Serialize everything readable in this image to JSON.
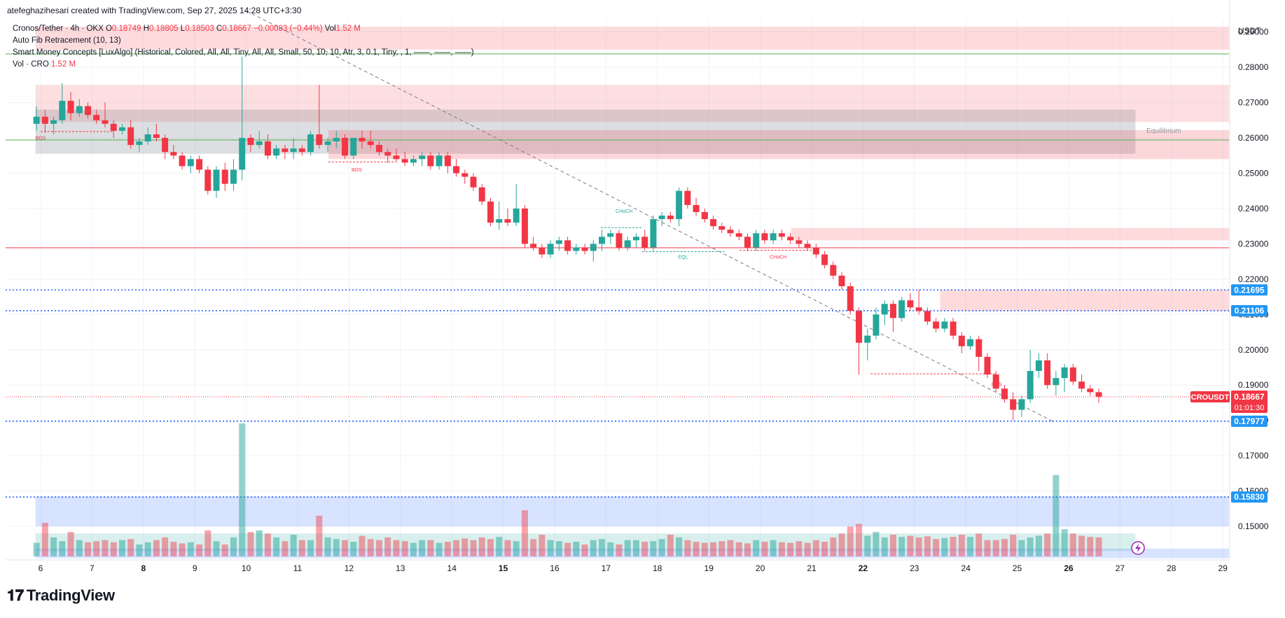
{
  "header": {
    "credit": "atefeghazihesari created with TradingView.com, Sep 27, 2025 14:28 UTC+3:30"
  },
  "legend": {
    "symbol": "Cronos/Tether · 4h · OKX",
    "o_label": "O",
    "o": "0.18749",
    "h_label": "H",
    "h": "0.18805",
    "l_label": "L",
    "l": "0.18503",
    "c_label": "C",
    "c": "0.18667",
    "change": "−0.00083 (−0.44%)",
    "vol_label": "Vol",
    "vol": "1.52 M",
    "indicator1": "Auto Fib Retracement (10, 13)",
    "indicator2": "Smart Money Concepts [LuxAlgo] (Historical, Colored, All, All, Tiny, All, All, Small, 50, 10, 10, Atr, 3, 0.1, Tiny, , 1, ——, ——, ——)",
    "indicator3": "Vol · CRO",
    "indicator3_value": "1.52 M"
  },
  "logo": {
    "text": "TradingView"
  },
  "colors": {
    "up": "#26a69a",
    "down": "#f23645",
    "blue": "#2962ff",
    "label_blue": "#2196f3"
  },
  "chart_data": {
    "type": "candlestick",
    "currency": "USDT",
    "yrange": [
      0.1405,
      0.2935
    ],
    "y_ticks": [
      "0.15000",
      "0.16000",
      "0.17000",
      "0.18000",
      "0.19000",
      "0.20000",
      "0.21000",
      "0.22000",
      "0.23000",
      "0.24000",
      "0.25000",
      "0.26000",
      "0.27000",
      "0.28000",
      "0.29000"
    ],
    "x_ticks": [
      {
        "label": "6",
        "day": 6
      },
      {
        "label": "7",
        "day": 7
      },
      {
        "label": "8",
        "day": 8
      },
      {
        "label": "9",
        "day": 9
      },
      {
        "label": "10",
        "day": 10
      },
      {
        "label": "11",
        "day": 11
      },
      {
        "label": "12",
        "day": 12
      },
      {
        "label": "13",
        "day": 13
      },
      {
        "label": "14",
        "day": 14
      },
      {
        "label": "15",
        "day": 15
      },
      {
        "label": "16",
        "day": 16
      },
      {
        "label": "17",
        "day": 17
      },
      {
        "label": "18",
        "day": 18
      },
      {
        "label": "19",
        "day": 19
      },
      {
        "label": "20",
        "day": 20
      },
      {
        "label": "21",
        "day": 21
      },
      {
        "label": "22",
        "day": 22
      },
      {
        "label": "23",
        "day": 23
      },
      {
        "label": "24",
        "day": 24
      },
      {
        "label": "25",
        "day": 25
      },
      {
        "label": "26",
        "day": 26
      },
      {
        "label": "27",
        "day": 27
      },
      {
        "label": "28",
        "day": 28
      },
      {
        "label": "29",
        "day": 29
      }
    ],
    "bold_x_ticks": [
      "8",
      "15",
      "22",
      "26"
    ],
    "current_price": {
      "label": "CROUSDT",
      "value": "0.18667",
      "countdown": "01:01:30",
      "price": 0.18667
    },
    "price_labels": [
      {
        "text": "0.21695",
        "price": 0.21695
      },
      {
        "text": "0.21106",
        "price": 0.21106
      },
      {
        "text": "0.17977",
        "price": 0.17977
      },
      {
        "text": "0.15830",
        "price": 0.1583
      }
    ],
    "horizontal_lines": [
      {
        "price": 0.2838,
        "color": "#4caf50",
        "style": "solid"
      },
      {
        "price": 0.2594,
        "color": "#4caf50",
        "style": "solid"
      },
      {
        "price": 0.2289,
        "color": "#f23645",
        "style": "solid"
      },
      {
        "price": 0.21695,
        "color": "#2962ff",
        "style": "dotted"
      },
      {
        "price": 0.21106,
        "color": "#2962ff",
        "style": "dotted"
      },
      {
        "price": 0.17977,
        "color": "#2962ff",
        "style": "dotted"
      },
      {
        "price": 0.1583,
        "color": "#2962ff",
        "style": "dotted"
      }
    ],
    "zones": [
      {
        "x0": 5.9,
        "x1": 29.2,
        "p0": 0.2915,
        "p1": 0.285,
        "color": "rgba(242,54,69,0.18)"
      },
      {
        "x0": 5.9,
        "x1": 29.2,
        "p0": 0.275,
        "p1": 0.2645,
        "color": "rgba(242,54,69,0.16)"
      },
      {
        "x0": 5.9,
        "x1": 27.3,
        "p0": 0.268,
        "p1": 0.2555,
        "color": "rgba(120,123,134,0.25)"
      },
      {
        "x0": 11.6,
        "x1": 29.2,
        "p0": 0.2622,
        "p1": 0.254,
        "color": "rgba(242,54,69,0.20)"
      },
      {
        "x0": 20.6,
        "x1": 29.2,
        "p0": 0.2345,
        "p1": 0.231,
        "color": "rgba(242,54,69,0.18)"
      },
      {
        "x0": 23.5,
        "x1": 29.2,
        "p0": 0.217,
        "p1": 0.211,
        "color": "rgba(242,54,69,0.18)"
      },
      {
        "x0": 5.9,
        "x1": 29.2,
        "p0": 0.1585,
        "p1": 0.15,
        "color": "rgba(41,98,255,0.18)"
      },
      {
        "x0": 5.9,
        "x1": 27.3,
        "p0": 0.148,
        "p1": 0.143,
        "color": "rgba(38,166,154,0.18)"
      },
      {
        "x0": 5.9,
        "x1": 29.2,
        "p0": 0.1437,
        "p1": 0.141,
        "color": "rgba(41,98,255,0.18)"
      }
    ],
    "smc_labels": [
      {
        "text": "BOS",
        "day": 6.0,
        "price": 0.2595,
        "color": "#f23645"
      },
      {
        "text": "BOS",
        "day": 12.15,
        "price": 0.2505,
        "color": "#f23645"
      },
      {
        "text": "CHoCH",
        "day": 17.35,
        "price": 0.2388,
        "color": "#26a69a"
      },
      {
        "text": "EQL",
        "day": 18.5,
        "price": 0.2258,
        "color": "#26a69a"
      },
      {
        "text": "CHoCH",
        "day": 20.35,
        "price": 0.2258,
        "color": "#f23645"
      },
      {
        "text": "BOS",
        "day": 24.6,
        "price": 0.1897,
        "color": "#f23645"
      },
      {
        "text": "Equilibrium",
        "day": 27.85,
        "price": 0.2614,
        "color": "#9598a1"
      }
    ],
    "smc_lines": [
      {
        "d0": 6.0,
        "d1": 7.4,
        "p": 0.2618,
        "color": "#f23645"
      },
      {
        "d0": 11.6,
        "d1": 12.9,
        "p": 0.2532,
        "color": "#f23645"
      },
      {
        "d0": 16.9,
        "d1": 17.7,
        "p": 0.2346,
        "color": "#26a69a"
      },
      {
        "d0": 17.7,
        "d1": 19.3,
        "p": 0.2278,
        "color": "#26a69a"
      },
      {
        "d0": 19.6,
        "d1": 21.1,
        "p": 0.2282,
        "color": "#f23645"
      },
      {
        "d0": 22.15,
        "d1": 24.6,
        "p": 0.1932,
        "color": "#f23645"
      }
    ],
    "trendline": {
      "d0": 10.0,
      "p0": 0.296,
      "d1": 25.7,
      "p1": 0.1797,
      "color": "#787b86"
    },
    "candles": [
      [
        0.264,
        0.269,
        0.262,
        0.266
      ],
      [
        0.266,
        0.268,
        0.2615,
        0.264
      ],
      [
        0.264,
        0.266,
        0.261,
        0.265
      ],
      [
        0.265,
        0.2755,
        0.264,
        0.2705
      ],
      [
        0.2705,
        0.273,
        0.265,
        0.267
      ],
      [
        0.267,
        0.271,
        0.266,
        0.269
      ],
      [
        0.269,
        0.27,
        0.2655,
        0.2665
      ],
      [
        0.2665,
        0.268,
        0.264,
        0.265
      ],
      [
        0.265,
        0.27,
        0.263,
        0.264
      ],
      [
        0.264,
        0.265,
        0.26,
        0.262
      ],
      [
        0.262,
        0.264,
        0.261,
        0.263
      ],
      [
        0.263,
        0.265,
        0.257,
        0.258
      ],
      [
        0.258,
        0.26,
        0.256,
        0.259
      ],
      [
        0.259,
        0.263,
        0.258,
        0.261
      ],
      [
        0.261,
        0.264,
        0.259,
        0.26
      ],
      [
        0.26,
        0.261,
        0.254,
        0.256
      ],
      [
        0.256,
        0.258,
        0.254,
        0.255
      ],
      [
        0.255,
        0.256,
        0.251,
        0.252
      ],
      [
        0.252,
        0.255,
        0.25,
        0.254
      ],
      [
        0.254,
        0.255,
        0.25,
        0.251
      ],
      [
        0.251,
        0.252,
        0.244,
        0.245
      ],
      [
        0.245,
        0.252,
        0.243,
        0.251
      ],
      [
        0.251,
        0.253,
        0.245,
        0.247
      ],
      [
        0.247,
        0.254,
        0.245,
        0.251
      ],
      [
        0.251,
        0.283,
        0.248,
        0.26
      ],
      [
        0.26,
        0.261,
        0.256,
        0.258
      ],
      [
        0.258,
        0.262,
        0.257,
        0.259
      ],
      [
        0.259,
        0.261,
        0.254,
        0.255
      ],
      [
        0.255,
        0.258,
        0.254,
        0.257
      ],
      [
        0.257,
        0.258,
        0.254,
        0.256
      ],
      [
        0.256,
        0.26,
        0.254,
        0.257
      ],
      [
        0.257,
        0.258,
        0.255,
        0.256
      ],
      [
        0.256,
        0.262,
        0.255,
        0.261
      ],
      [
        0.261,
        0.275,
        0.257,
        0.258
      ],
      [
        0.258,
        0.26,
        0.256,
        0.259
      ],
      [
        0.259,
        0.262,
        0.257,
        0.26
      ],
      [
        0.26,
        0.261,
        0.254,
        0.255
      ],
      [
        0.255,
        0.26,
        0.254,
        0.26
      ],
      [
        0.26,
        0.262,
        0.257,
        0.259
      ],
      [
        0.259,
        0.262,
        0.257,
        0.258
      ],
      [
        0.258,
        0.259,
        0.255,
        0.256
      ],
      [
        0.256,
        0.257,
        0.253,
        0.255
      ],
      [
        0.255,
        0.257,
        0.253,
        0.254
      ],
      [
        0.254,
        0.256,
        0.252,
        0.253
      ],
      [
        0.253,
        0.255,
        0.252,
        0.254
      ],
      [
        0.254,
        0.256,
        0.252,
        0.255
      ],
      [
        0.255,
        0.256,
        0.251,
        0.252
      ],
      [
        0.252,
        0.256,
        0.251,
        0.255
      ],
      [
        0.255,
        0.256,
        0.25,
        0.252
      ],
      [
        0.252,
        0.254,
        0.249,
        0.25
      ],
      [
        0.25,
        0.251,
        0.247,
        0.249
      ],
      [
        0.249,
        0.25,
        0.245,
        0.246
      ],
      [
        0.246,
        0.247,
        0.241,
        0.242
      ],
      [
        0.242,
        0.243,
        0.235,
        0.236
      ],
      [
        0.236,
        0.242,
        0.234,
        0.237
      ],
      [
        0.237,
        0.24,
        0.235,
        0.236
      ],
      [
        0.236,
        0.247,
        0.235,
        0.24
      ],
      [
        0.24,
        0.241,
        0.229,
        0.23
      ],
      [
        0.23,
        0.232,
        0.228,
        0.229
      ],
      [
        0.229,
        0.23,
        0.226,
        0.227
      ],
      [
        0.227,
        0.231,
        0.226,
        0.23
      ],
      [
        0.23,
        0.232,
        0.228,
        0.231
      ],
      [
        0.231,
        0.232,
        0.227,
        0.228
      ],
      [
        0.228,
        0.23,
        0.227,
        0.229
      ],
      [
        0.229,
        0.23,
        0.227,
        0.228
      ],
      [
        0.228,
        0.231,
        0.225,
        0.23
      ],
      [
        0.23,
        0.234,
        0.228,
        0.232
      ],
      [
        0.232,
        0.234,
        0.23,
        0.233
      ],
      [
        0.233,
        0.234,
        0.228,
        0.229
      ],
      [
        0.229,
        0.232,
        0.228,
        0.231
      ],
      [
        0.231,
        0.233,
        0.229,
        0.232
      ],
      [
        0.232,
        0.234,
        0.228,
        0.229
      ],
      [
        0.229,
        0.238,
        0.228,
        0.237
      ],
      [
        0.237,
        0.239,
        0.235,
        0.238
      ],
      [
        0.238,
        0.239,
        0.236,
        0.237
      ],
      [
        0.237,
        0.246,
        0.235,
        0.245
      ],
      [
        0.245,
        0.246,
        0.24,
        0.241
      ],
      [
        0.241,
        0.243,
        0.238,
        0.239
      ],
      [
        0.239,
        0.24,
        0.236,
        0.237
      ],
      [
        0.237,
        0.238,
        0.234,
        0.235
      ],
      [
        0.235,
        0.236,
        0.233,
        0.234
      ],
      [
        0.234,
        0.235,
        0.232,
        0.233
      ],
      [
        0.233,
        0.234,
        0.231,
        0.232
      ],
      [
        0.232,
        0.233,
        0.228,
        0.229
      ],
      [
        0.229,
        0.234,
        0.228,
        0.233
      ],
      [
        0.233,
        0.234,
        0.23,
        0.231
      ],
      [
        0.231,
        0.234,
        0.23,
        0.233
      ],
      [
        0.233,
        0.234,
        0.231,
        0.232
      ],
      [
        0.232,
        0.233,
        0.23,
        0.231
      ],
      [
        0.231,
        0.232,
        0.229,
        0.23
      ],
      [
        0.23,
        0.231,
        0.228,
        0.229
      ],
      [
        0.229,
        0.23,
        0.226,
        0.227
      ],
      [
        0.227,
        0.228,
        0.223,
        0.224
      ],
      [
        0.224,
        0.225,
        0.22,
        0.221
      ],
      [
        0.221,
        0.222,
        0.217,
        0.218
      ],
      [
        0.218,
        0.219,
        0.21,
        0.211
      ],
      [
        0.211,
        0.212,
        0.193,
        0.202
      ],
      [
        0.202,
        0.206,
        0.197,
        0.204
      ],
      [
        0.204,
        0.212,
        0.203,
        0.21
      ],
      [
        0.21,
        0.214,
        0.207,
        0.213
      ],
      [
        0.213,
        0.214,
        0.205,
        0.209
      ],
      [
        0.209,
        0.215,
        0.208,
        0.214
      ],
      [
        0.214,
        0.216,
        0.211,
        0.212
      ],
      [
        0.212,
        0.217,
        0.21,
        0.211
      ],
      [
        0.211,
        0.212,
        0.207,
        0.208
      ],
      [
        0.208,
        0.209,
        0.205,
        0.206
      ],
      [
        0.206,
        0.209,
        0.205,
        0.208
      ],
      [
        0.208,
        0.209,
        0.203,
        0.204
      ],
      [
        0.204,
        0.205,
        0.199,
        0.201
      ],
      [
        0.201,
        0.204,
        0.2,
        0.203
      ],
      [
        0.203,
        0.204,
        0.194,
        0.198
      ],
      [
        0.198,
        0.199,
        0.192,
        0.193
      ],
      [
        0.193,
        0.194,
        0.188,
        0.189
      ],
      [
        0.189,
        0.19,
        0.185,
        0.186
      ],
      [
        0.186,
        0.188,
        0.18,
        0.183
      ],
      [
        0.183,
        0.187,
        0.181,
        0.186
      ],
      [
        0.186,
        0.2,
        0.185,
        0.194
      ],
      [
        0.194,
        0.199,
        0.192,
        0.197
      ],
      [
        0.197,
        0.199,
        0.189,
        0.19
      ],
      [
        0.19,
        0.194,
        0.187,
        0.192
      ],
      [
        0.192,
        0.196,
        0.188,
        0.195
      ],
      [
        0.195,
        0.196,
        0.19,
        0.191
      ],
      [
        0.191,
        0.193,
        0.188,
        0.189
      ],
      [
        0.189,
        0.19,
        0.187,
        0.188
      ],
      [
        0.188,
        0.189,
        0.185,
        0.1867
      ]
    ],
    "volumes": [
      0.25,
      0.62,
      0.35,
      0.28,
      0.45,
      0.3,
      0.26,
      0.28,
      0.3,
      0.26,
      0.3,
      0.32,
      0.22,
      0.26,
      0.3,
      0.35,
      0.27,
      0.24,
      0.26,
      0.22,
      0.48,
      0.28,
      0.22,
      0.35,
      2.45,
      0.45,
      0.48,
      0.42,
      0.35,
      0.28,
      0.4,
      0.3,
      0.3,
      0.75,
      0.35,
      0.32,
      0.3,
      0.27,
      0.38,
      0.32,
      0.3,
      0.35,
      0.3,
      0.28,
      0.25,
      0.3,
      0.3,
      0.25,
      0.27,
      0.3,
      0.33,
      0.3,
      0.35,
      0.32,
      0.36,
      0.3,
      0.28,
      0.85,
      0.32,
      0.4,
      0.3,
      0.28,
      0.25,
      0.27,
      0.22,
      0.3,
      0.32,
      0.26,
      0.22,
      0.3,
      0.3,
      0.27,
      0.28,
      0.32,
      0.4,
      0.35,
      0.3,
      0.27,
      0.25,
      0.26,
      0.28,
      0.3,
      0.26,
      0.24,
      0.3,
      0.27,
      0.3,
      0.26,
      0.25,
      0.28,
      0.25,
      0.3,
      0.27,
      0.35,
      0.42,
      0.55,
      0.6,
      0.38,
      0.45,
      0.35,
      0.4,
      0.36,
      0.38,
      0.35,
      0.37,
      0.32,
      0.34,
      0.36,
      0.4,
      0.36,
      0.42,
      0.3,
      0.3,
      0.32,
      0.4,
      0.3,
      0.35,
      0.38,
      0.42,
      1.5,
      0.5,
      0.42,
      0.38,
      0.36,
      0.35,
      0.32,
      0.28
    ]
  }
}
